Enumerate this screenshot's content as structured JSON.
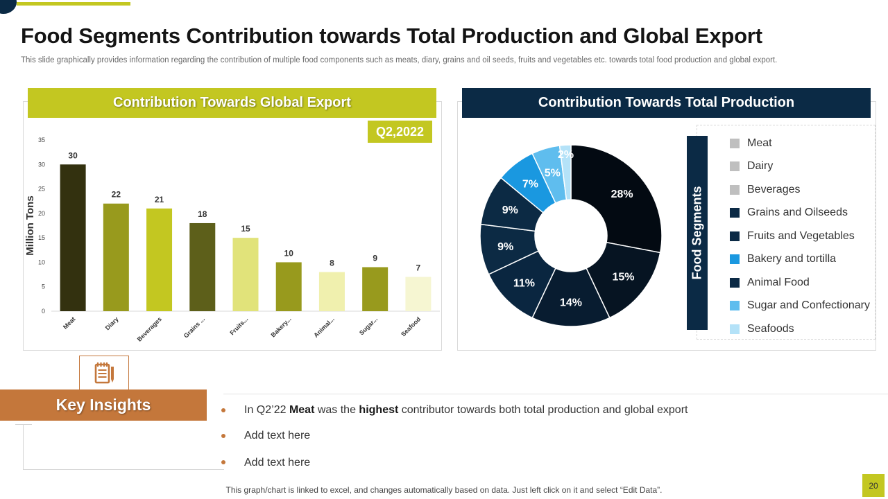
{
  "title": "Food Segments Contribution towards Total Production and Global Export",
  "subtitle": "This slide graphically provides information regarding the contribution of multiple food components such as meats, diary, grains and oil seeds, fruits and vegetables etc. towards total food production and global export.",
  "colors": {
    "accent_green": "#c3c721",
    "navy": "#0b2a45",
    "copper": "#c4773b"
  },
  "chart_data": [
    {
      "type": "bar",
      "title": "Contribution Towards Global Export",
      "badge": "Q2,2022",
      "ylabel": "Million Tons",
      "xlabel": "",
      "ylim": [
        0,
        35
      ],
      "yticks": [
        "0",
        "5",
        "10",
        "15",
        "20",
        "25",
        "30",
        "35"
      ],
      "categories": [
        "Meat",
        "Diary",
        "Beverages",
        "Grains ...",
        "Fruits...",
        "Bakery...",
        "Animal...",
        "Sugar...",
        "Seafood"
      ],
      "values": [
        30,
        22,
        21,
        18,
        15,
        10,
        8,
        9,
        7
      ],
      "bar_colors": [
        "#33310f",
        "#989a1d",
        "#c3c721",
        "#5d5f1a",
        "#e1e37a",
        "#989a1d",
        "#f0f0ae",
        "#989a1d",
        "#f6f6d2"
      ]
    },
    {
      "type": "pie",
      "title": "Contribution Towards Total Production",
      "legend_title": "Food Segments",
      "labels": [
        "Meat",
        "Dairy",
        "Beverages",
        "Grains and Oilseeds",
        "Fruits and Vegetables",
        "Bakery and tortilla",
        "Animal Food",
        "Sugar and Confectionary",
        "Seafoods"
      ],
      "values": [
        28,
        15,
        14,
        11,
        9,
        9,
        7,
        5,
        2
      ],
      "slice_labels": [
        "28%",
        "15%",
        "14%",
        "11%",
        "9%",
        "9%",
        "7%",
        "5%",
        "2%"
      ],
      "slice_colors": [
        "#030a12",
        "#061422",
        "#081c30",
        "#0a2640",
        "#0c2a44",
        "#0c2a44",
        "#1a98e0",
        "#5fbdee",
        "#b4e2f8"
      ],
      "legend_swatch_colors": [
        "#bfbfbf",
        "#bfbfbf",
        "#bfbfbf",
        "#0b2a45",
        "#0b2a45",
        "#1a98e0",
        "#0b2a45",
        "#5fbdee",
        "#b4e2f8"
      ]
    }
  ],
  "key_insights": {
    "title": "Key Insights",
    "item1": {
      "pre": "In Q2’22 ",
      "b1": "Meat",
      "mid": " was the ",
      "b2": "highest",
      "post": " contributor towards both total production and global export"
    },
    "item2": "Add text here",
    "item3": "Add text here"
  },
  "footer": "This graph/chart is linked to excel, and changes automatically based on data. Just left click on it and select “Edit Data”.",
  "page_number": "20"
}
